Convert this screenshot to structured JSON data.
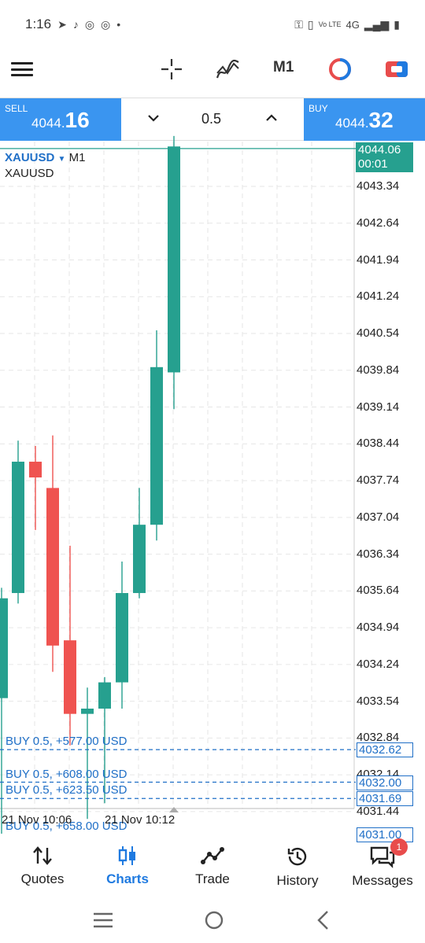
{
  "status": {
    "time": "1:16",
    "net": "4G",
    "volte": "Vo LTE"
  },
  "toolbar": {
    "timeframe": "M1"
  },
  "trade": {
    "sell_label": "SELL",
    "sell_price_prefix": "4044.",
    "sell_price_big": "16",
    "buy_label": "BUY",
    "buy_price_prefix": "4044.",
    "buy_price_big": "32",
    "lot": "0.5"
  },
  "chart": {
    "symbol": "XAUUSD",
    "timeframe": "M1",
    "symbol_sub": "XAUUSD",
    "current_price": "4044.06",
    "current_timer": "00:01",
    "price_labels": [
      "4043.34",
      "4042.64",
      "4041.94",
      "4041.24",
      "4040.54",
      "4039.84",
      "4039.14",
      "4038.44",
      "4037.74",
      "4037.04",
      "4036.34",
      "4035.64",
      "4034.94",
      "4034.24",
      "4033.54",
      "4032.84",
      "4032.14",
      "4031.44"
    ],
    "orders": [
      {
        "label": "BUY 0.5,  +577.00 USD",
        "price": "4032.62"
      },
      {
        "label": "BUY 0.5,  +608.00 USD",
        "price": "4032.00"
      },
      {
        "label": "BUY 0.5,  +623.50 USD",
        "price": "4031.69"
      },
      {
        "label": "BUY 0.5,  +658.00 USD",
        "price": "4031.00"
      }
    ],
    "time_labels": [
      "21 Nov 10:06",
      "21 Nov 10:12"
    ],
    "colors": {
      "bull": "#26a08f",
      "bear": "#ef5350",
      "order": "#1f6fc7"
    }
  },
  "chart_data": {
    "type": "candlestick",
    "symbol": "XAUUSD",
    "timeframe": "M1",
    "ylim": [
      4031.0,
      4044.3
    ],
    "candles": [
      {
        "o": 4033.6,
        "h": 4035.7,
        "l": 4031.0,
        "c": 4035.5
      },
      {
        "o": 4035.6,
        "h": 4038.5,
        "l": 4035.4,
        "c": 4038.1
      },
      {
        "o": 4038.1,
        "h": 4038.4,
        "l": 4036.8,
        "c": 4037.8
      },
      {
        "o": 4037.6,
        "h": 4038.6,
        "l": 4034.1,
        "c": 4034.6
      },
      {
        "o": 4034.7,
        "h": 4036.5,
        "l": 4032.7,
        "c": 4033.3
      },
      {
        "o": 4033.3,
        "h": 4033.8,
        "l": 4031.3,
        "c": 4033.4
      },
      {
        "o": 4033.4,
        "h": 4034.0,
        "l": 4031.6,
        "c": 4033.9
      },
      {
        "o": 4033.9,
        "h": 4036.2,
        "l": 4033.4,
        "c": 4035.6
      },
      {
        "o": 4035.6,
        "h": 4037.6,
        "l": 4035.5,
        "c": 4036.9
      },
      {
        "o": 4036.9,
        "h": 4040.6,
        "l": 4036.6,
        "c": 4039.9
      },
      {
        "o": 4039.8,
        "h": 4044.3,
        "l": 4039.1,
        "c": 4044.1
      }
    ]
  },
  "nav": [
    {
      "label": "Quotes",
      "icon": "sort-arrows-icon"
    },
    {
      "label": "Charts",
      "icon": "candles-icon",
      "active": true
    },
    {
      "label": "Trade",
      "icon": "trend-icon"
    },
    {
      "label": "History",
      "icon": "history-icon"
    },
    {
      "label": "Messages",
      "icon": "messages-icon",
      "badge": "1"
    }
  ]
}
